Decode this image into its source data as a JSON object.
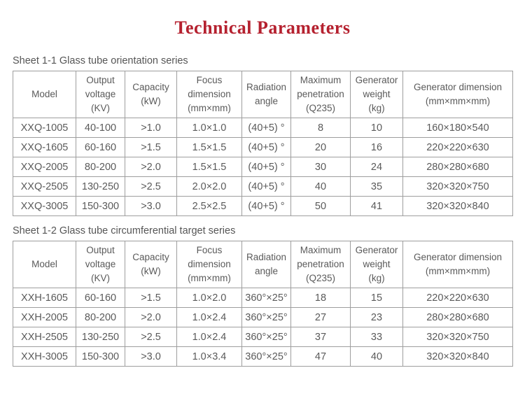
{
  "page": {
    "title": "Technical Parameters"
  },
  "colors": {
    "title_red": "#b5212f",
    "text_gray": "#5a5a5a",
    "border_gray": "#9e9e9e"
  },
  "tables": [
    {
      "caption": "Sheet 1-1 Glass tube orientation series",
      "headers": [
        "Model",
        "Output\nvoltage\n(KV)",
        "Capacity\n(kW)",
        "Focus\ndimension\n(mm×mm)",
        "Radiation\nangle",
        "Maximum\npenetration\n(Q235)",
        "Generator\nweight\n(kg)",
        "Generator dimension\n(mm×mm×mm)"
      ],
      "rows": [
        [
          "XXQ-1005",
          "40-100",
          ">1.0",
          "1.0×1.0",
          "(40+5) °",
          "8",
          "10",
          "160×180×540"
        ],
        [
          "XXQ-1605",
          "60-160",
          ">1.5",
          "1.5×1.5",
          "(40+5) °",
          "20",
          "16",
          "220×220×630"
        ],
        [
          "XXQ-2005",
          "80-200",
          ">2.0",
          "1.5×1.5",
          "(40+5) °",
          "30",
          "24",
          "280×280×680"
        ],
        [
          "XXQ-2505",
          "130-250",
          ">2.5",
          "2.0×2.0",
          "(40+5) °",
          "40",
          "35",
          "320×320×750"
        ],
        [
          "XXQ-3005",
          "150-300",
          ">3.0",
          "2.5×2.5",
          "(40+5) °",
          "50",
          "41",
          "320×320×840"
        ]
      ]
    },
    {
      "caption": "Sheet 1-2 Glass tube circumferential target series",
      "headers": [
        "Model",
        "Output\nvoltage\n(KV)",
        "Capacity\n(kW)",
        "Focus\ndimension\n(mm×mm)",
        "Radiation\nangle",
        "Maximum\npenetration\n(Q235)",
        "Generator\nweight\n(kg)",
        "Generator dimension\n(mm×mm×mm)"
      ],
      "rows": [
        [
          "XXH-1605",
          "60-160",
          ">1.5",
          "1.0×2.0",
          "360°×25°",
          "18",
          "15",
          "220×220×630"
        ],
        [
          "XXH-2005",
          "80-200",
          ">2.0",
          "1.0×2.4",
          "360°×25°",
          "27",
          "23",
          "280×280×680"
        ],
        [
          "XXH-2505",
          "130-250",
          ">2.5",
          "1.0×2.4",
          "360°×25°",
          "37",
          "33",
          "320×320×750"
        ],
        [
          "XXH-3005",
          "150-300",
          ">3.0",
          "1.0×3.4",
          "360°×25°",
          "47",
          "40",
          "320×320×840"
        ]
      ]
    }
  ]
}
